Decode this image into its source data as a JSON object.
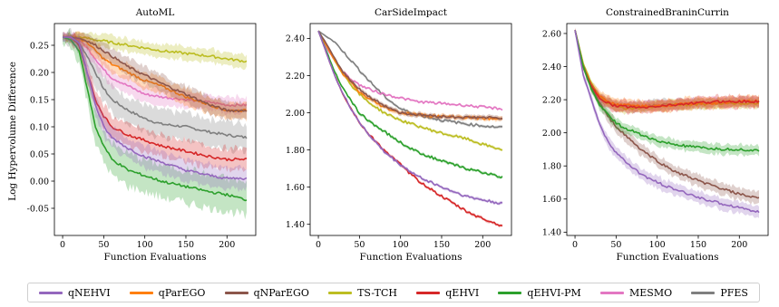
{
  "y_axis_label": "Log Hypervolume Difference",
  "series_styles": {
    "qNEHVI": {
      "color": "#9467bd"
    },
    "qParEGO": {
      "color": "#ff7f0e"
    },
    "qNParEGO": {
      "color": "#8c564b"
    },
    "TS-TCH": {
      "color": "#bcbd22"
    },
    "qEHVI": {
      "color": "#d62728"
    },
    "qEHVI-PM": {
      "color": "#2ca02c"
    },
    "MESMO": {
      "color": "#e377c2"
    },
    "PFES": {
      "color": "#7f7f7f"
    }
  },
  "legend": [
    "qNEHVI",
    "qParEGO",
    "qNParEGO",
    "TS-TCH",
    "qEHVI",
    "qEHVI-PM",
    "MESMO",
    "PFES"
  ],
  "chart_data": [
    {
      "type": "line",
      "title": "AutoML",
      "xlabel": "Function Evaluations",
      "ylabel": "Log Hypervolume Difference",
      "xlim": [
        -10,
        235
      ],
      "ylim": [
        -0.1,
        0.29
      ],
      "xticks": [
        0,
        50,
        100,
        150,
        200
      ],
      "yticks": [
        -0.05,
        0.0,
        0.05,
        0.1,
        0.15,
        0.2,
        0.25
      ],
      "ytick_labels": [
        "-0.05",
        "0.00",
        "0.05",
        "0.10",
        "0.15",
        "0.20",
        "0.25"
      ],
      "x": [
        0,
        10,
        20,
        30,
        40,
        50,
        60,
        80,
        100,
        120,
        150,
        180,
        200,
        225
      ],
      "series": [
        {
          "name": "qNEHVI",
          "values": [
            0.265,
            0.265,
            0.255,
            0.2,
            0.14,
            0.1,
            0.08,
            0.06,
            0.045,
            0.035,
            0.02,
            0.01,
            0.005,
            0.005
          ],
          "band": 0.02
        },
        {
          "name": "qParEGO",
          "values": [
            0.265,
            0.265,
            0.262,
            0.255,
            0.24,
            0.225,
            0.215,
            0.2,
            0.185,
            0.175,
            0.155,
            0.14,
            0.13,
            0.13
          ],
          "band": 0.015
        },
        {
          "name": "qNParEGO",
          "values": [
            0.265,
            0.265,
            0.263,
            0.258,
            0.25,
            0.24,
            0.23,
            0.21,
            0.195,
            0.18,
            0.16,
            0.14,
            0.13,
            0.13
          ],
          "band": 0.015
        },
        {
          "name": "TS-TCH",
          "values": [
            0.265,
            0.265,
            0.265,
            0.263,
            0.26,
            0.258,
            0.255,
            0.25,
            0.245,
            0.24,
            0.235,
            0.23,
            0.225,
            0.22
          ],
          "band": 0.012
        },
        {
          "name": "qEHVI",
          "values": [
            0.265,
            0.265,
            0.25,
            0.2,
            0.15,
            0.12,
            0.1,
            0.085,
            0.075,
            0.065,
            0.055,
            0.045,
            0.04,
            0.04
          ],
          "band": 0.02
        },
        {
          "name": "qEHVI-PM",
          "values": [
            0.265,
            0.26,
            0.24,
            0.17,
            0.1,
            0.065,
            0.04,
            0.02,
            0.01,
            0.0,
            -0.01,
            -0.02,
            -0.025,
            -0.035
          ],
          "band": 0.03
        },
        {
          "name": "MESMO",
          "values": [
            0.265,
            0.265,
            0.26,
            0.245,
            0.225,
            0.205,
            0.19,
            0.175,
            0.16,
            0.155,
            0.15,
            0.145,
            0.14,
            0.14
          ],
          "band": 0.015
        },
        {
          "name": "PFES",
          "values": [
            0.265,
            0.265,
            0.255,
            0.23,
            0.2,
            0.17,
            0.15,
            0.13,
            0.115,
            0.105,
            0.1,
            0.09,
            0.085,
            0.08
          ],
          "band": 0.025
        }
      ]
    },
    {
      "type": "line",
      "title": "CarSideImpact",
      "xlabel": "Function Evaluations",
      "ylabel": "",
      "xlim": [
        -10,
        235
      ],
      "ylim": [
        1.34,
        2.48
      ],
      "xticks": [
        0,
        50,
        100,
        150,
        200
      ],
      "yticks": [
        1.4,
        1.6,
        1.8,
        2.0,
        2.2,
        2.4
      ],
      "ytick_labels": [
        "1.40",
        "1.60",
        "1.80",
        "2.00",
        "2.20",
        "2.40"
      ],
      "x": [
        0,
        10,
        20,
        30,
        40,
        50,
        60,
        80,
        100,
        120,
        150,
        180,
        200,
        225
      ],
      "series": [
        {
          "name": "qNEHVI",
          "values": [
            2.44,
            2.32,
            2.2,
            2.1,
            2.02,
            1.95,
            1.89,
            1.79,
            1.72,
            1.66,
            1.6,
            1.55,
            1.53,
            1.51
          ],
          "band": 0.008
        },
        {
          "name": "qParEGO",
          "values": [
            2.44,
            2.36,
            2.28,
            2.21,
            2.16,
            2.11,
            2.08,
            2.03,
            2.0,
            1.99,
            1.98,
            1.975,
            1.97,
            1.965
          ],
          "band": 0.012
        },
        {
          "name": "qNParEGO",
          "values": [
            2.44,
            2.37,
            2.29,
            2.22,
            2.17,
            2.13,
            2.09,
            2.04,
            2.0,
            1.99,
            1.98,
            1.975,
            1.975,
            1.97
          ],
          "band": 0.012
        },
        {
          "name": "TS-TCH",
          "values": [
            2.44,
            2.36,
            2.28,
            2.21,
            2.15,
            2.1,
            2.06,
            2.0,
            1.96,
            1.93,
            1.89,
            1.86,
            1.83,
            1.8
          ],
          "band": 0.008
        },
        {
          "name": "qEHVI",
          "values": [
            2.44,
            2.32,
            2.2,
            2.1,
            2.02,
            1.95,
            1.89,
            1.8,
            1.72,
            1.64,
            1.55,
            1.47,
            1.43,
            1.39
          ],
          "band": 0.008
        },
        {
          "name": "qEHVI-PM",
          "values": [
            2.44,
            2.33,
            2.22,
            2.13,
            2.06,
            2.0,
            1.96,
            1.9,
            1.84,
            1.79,
            1.74,
            1.7,
            1.68,
            1.65
          ],
          "band": 0.008
        },
        {
          "name": "MESMO",
          "values": [
            2.44,
            2.35,
            2.28,
            2.22,
            2.18,
            2.15,
            2.13,
            2.1,
            2.08,
            2.06,
            2.05,
            2.04,
            2.03,
            2.02
          ],
          "band": 0.006
        },
        {
          "name": "PFES",
          "values": [
            2.44,
            2.41,
            2.38,
            2.33,
            2.28,
            2.23,
            2.18,
            2.09,
            2.02,
            1.99,
            1.96,
            1.94,
            1.93,
            1.92
          ],
          "band": 0.008
        }
      ]
    },
    {
      "type": "line",
      "title": "ConstrainedBraninCurrin",
      "xlabel": "Function Evaluations",
      "ylabel": "",
      "xlim": [
        -10,
        235
      ],
      "ylim": [
        1.38,
        2.66
      ],
      "xticks": [
        0,
        50,
        100,
        150,
        200
      ],
      "yticks": [
        1.4,
        1.6,
        1.8,
        2.0,
        2.2,
        2.4,
        2.6
      ],
      "ytick_labels": [
        "1.40",
        "1.60",
        "1.80",
        "2.00",
        "2.20",
        "2.40",
        "2.60"
      ],
      "x": [
        0,
        10,
        20,
        30,
        40,
        50,
        60,
        80,
        100,
        120,
        150,
        180,
        200,
        225
      ],
      "series": [
        {
          "name": "qNEHVI",
          "values": [
            2.62,
            2.35,
            2.2,
            2.05,
            1.95,
            1.88,
            1.83,
            1.75,
            1.7,
            1.66,
            1.61,
            1.57,
            1.55,
            1.52
          ],
          "band": 0.035
        },
        {
          "name": "qParEGO",
          "values": [
            2.62,
            2.4,
            2.28,
            2.22,
            2.19,
            2.17,
            2.17,
            2.16,
            2.16,
            2.17,
            2.18,
            2.18,
            2.19,
            2.19
          ],
          "band": 0.035
        },
        {
          "name": "qNParEGO",
          "values": [
            2.62,
            2.4,
            2.27,
            2.18,
            2.1,
            2.04,
            1.99,
            1.9,
            1.83,
            1.77,
            1.71,
            1.66,
            1.63,
            1.6
          ],
          "band": 0.035
        },
        {
          "name": "TS-TCH",
          "values": [
            2.62,
            2.42,
            2.3,
            2.22,
            2.18,
            2.16,
            2.15,
            2.15,
            2.16,
            2.17,
            2.17,
            2.18,
            2.18,
            2.18
          ],
          "band": 0.03
        },
        {
          "name": "qEHVI",
          "values": [
            2.62,
            2.4,
            2.28,
            2.21,
            2.18,
            2.16,
            2.16,
            2.15,
            2.16,
            2.17,
            2.18,
            2.19,
            2.19,
            2.19
          ],
          "band": 0.035
        },
        {
          "name": "qEHVI-PM",
          "values": [
            2.62,
            2.4,
            2.26,
            2.17,
            2.11,
            2.06,
            2.03,
            1.99,
            1.95,
            1.93,
            1.91,
            1.9,
            1.9,
            1.89
          ],
          "band": 0.03
        },
        {
          "name": "MESMO",
          "values": [
            2.62,
            2.4,
            2.28,
            2.21,
            2.18,
            2.16,
            2.16,
            2.16,
            2.17,
            2.17,
            2.18,
            2.18,
            2.19,
            2.19
          ],
          "band": 0.03
        },
        {
          "name": "PFES",
          "values": [
            2.62,
            2.4,
            2.28,
            2.21,
            2.18,
            2.16,
            2.16,
            2.16,
            2.17,
            2.17,
            2.18,
            2.18,
            2.19,
            2.19
          ],
          "band": 0.03
        }
      ]
    }
  ]
}
